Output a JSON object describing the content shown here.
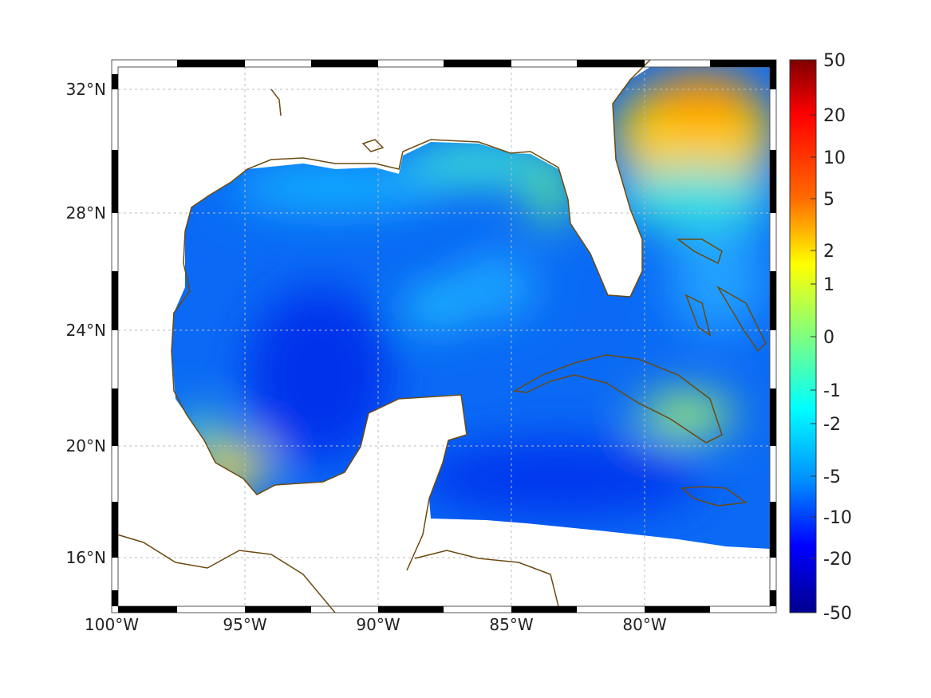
{
  "map": {
    "lon_labels": [
      "100°W",
      "95°W",
      "90°W",
      "85°W",
      "80°W"
    ],
    "lat_labels": [
      "32°N",
      "28°N",
      "24°N",
      "20°N",
      "16°N"
    ]
  },
  "colorbar": {
    "ticks": [
      "50",
      "20",
      "10",
      "5",
      "2",
      "1",
      "0",
      "-1",
      "-2",
      "-5",
      "-10",
      "-20",
      "-50"
    ],
    "colors": [
      "#800000",
      "#ff0000",
      "#ff6a00",
      "#ffff00",
      "#7fff7f",
      "#00ffff",
      "#0060ff",
      "#0000ff",
      "#00008f"
    ]
  },
  "colors": {
    "coastline": "#6b4a10",
    "frame": "#000000"
  }
}
